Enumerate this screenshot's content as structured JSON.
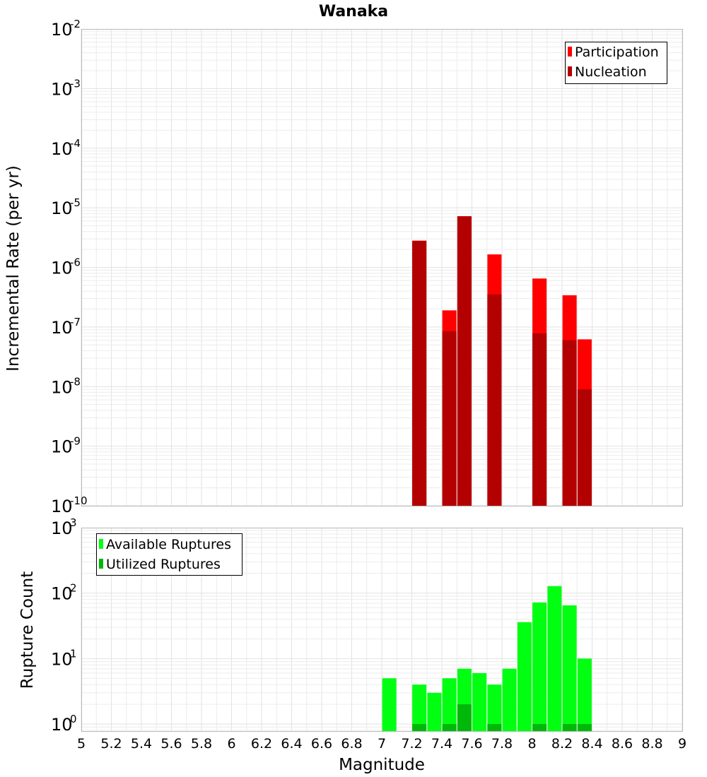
{
  "chart_data": [
    {
      "type": "bar",
      "title": "Wanaka",
      "xlabel": "Magnitude",
      "ylabel": "Incremental Rate (per yr)",
      "yscale": "log",
      "ylim": [
        1e-10,
        0.01
      ],
      "xlim": [
        5,
        9
      ],
      "grid": true,
      "legend_position": "top-right",
      "legend_entries": [
        "Participation",
        "Nucleation"
      ],
      "ytick_labels": [
        {
          "base": "10",
          "exp": "-10",
          "value": 1e-10
        },
        {
          "base": "10",
          "exp": "-9",
          "value": 1e-09
        },
        {
          "base": "10",
          "exp": "-8",
          "value": 1e-08
        },
        {
          "base": "10",
          "exp": "-7",
          "value": 1e-07
        },
        {
          "base": "10",
          "exp": "-6",
          "value": 1e-06
        },
        {
          "base": "10",
          "exp": "-5",
          "value": 1e-05
        },
        {
          "base": "10",
          "exp": "-4",
          "value": 0.0001
        },
        {
          "base": "10",
          "exp": "-3",
          "value": 0.001
        },
        {
          "base": "10",
          "exp": "-2",
          "value": 0.01
        }
      ],
      "series": [
        {
          "name": "Participation",
          "color": "#ff0000",
          "x": [
            7.25,
            7.45,
            7.55,
            7.75,
            8.05,
            8.25,
            8.35
          ],
          "values": [
            2.8e-06,
            1.9e-07,
            7.2e-06,
            1.65e-06,
            6.5e-07,
            3.4e-07,
            6.2e-08
          ]
        },
        {
          "name": "Nucleation",
          "color": "#b30000",
          "x": [
            7.25,
            7.45,
            7.55,
            7.75,
            8.05,
            8.25,
            8.35
          ],
          "values": [
            2.8e-06,
            8.5e-08,
            7.2e-06,
            3.5e-07,
            7.8e-08,
            6e-08,
            9e-09
          ]
        }
      ]
    },
    {
      "type": "bar",
      "xlabel": "Magnitude",
      "ylabel": "Rupture Count",
      "yscale": "log",
      "ylim": [
        0.78,
        1000
      ],
      "xlim": [
        5,
        9
      ],
      "grid": true,
      "legend_position": "top-left",
      "legend_entries": [
        "Available Ruptures",
        "Utilized Ruptures"
      ],
      "ytick_labels": [
        {
          "base": "10",
          "exp": "0",
          "value": 1
        },
        {
          "base": "10",
          "exp": "1",
          "value": 10
        },
        {
          "base": "10",
          "exp": "2",
          "value": 100
        },
        {
          "base": "10",
          "exp": "3",
          "value": 1000
        }
      ],
      "series": [
        {
          "name": "Available Ruptures",
          "color": "#00ff11",
          "x": [
            7.05,
            7.25,
            7.35,
            7.45,
            7.55,
            7.65,
            7.75,
            7.85,
            7.95,
            8.05,
            8.15,
            8.25,
            8.35
          ],
          "values": [
            5,
            4,
            3,
            5,
            7,
            6,
            4,
            7,
            36,
            72,
            128,
            65,
            10
          ]
        },
        {
          "name": "Utilized Ruptures",
          "color": "#00b80a",
          "x": [
            7.25,
            7.45,
            7.55,
            7.75,
            8.05,
            8.25,
            8.35
          ],
          "values": [
            1,
            1,
            2,
            1,
            1,
            1,
            1
          ]
        }
      ]
    }
  ],
  "x_ticks": [
    "5",
    "5.2",
    "5.4",
    "5.6",
    "5.8",
    "6",
    "6.2",
    "6.4",
    "6.6",
    "6.8",
    "7",
    "7.2",
    "7.4",
    "7.6",
    "7.8",
    "8",
    "8.2",
    "8.4",
    "8.6",
    "8.8",
    "9"
  ]
}
